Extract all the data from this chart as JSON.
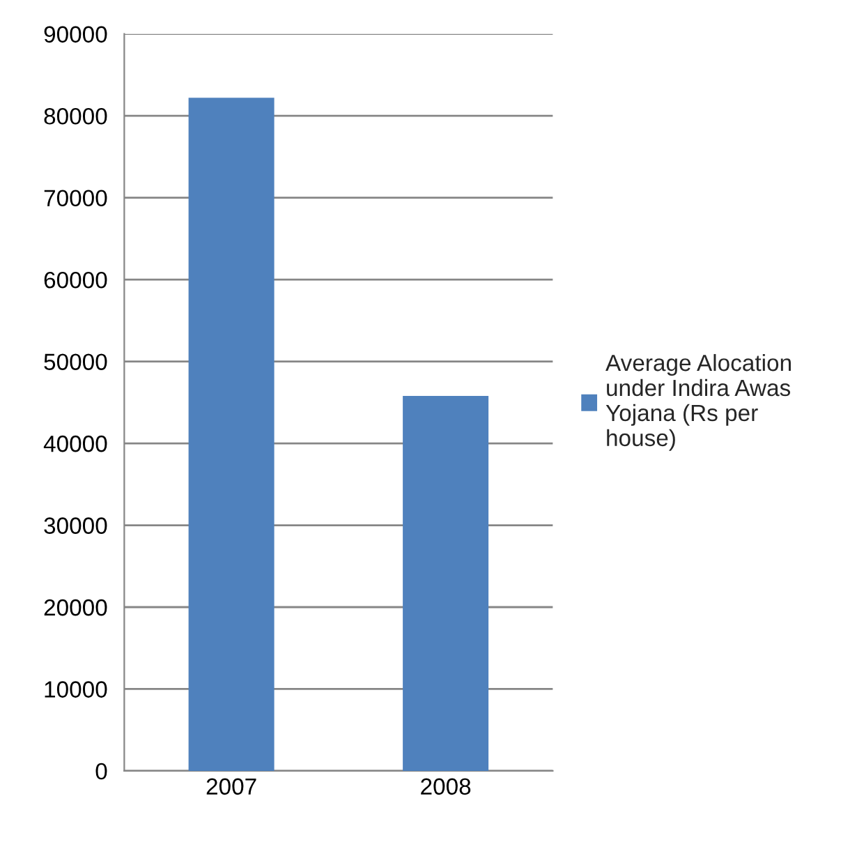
{
  "chart_data": {
    "type": "bar",
    "categories": [
      "2007",
      "2008"
    ],
    "series": [
      {
        "name": "Average Alocation under Indira Awas Yojana (Rs per house)",
        "color": "#4f81bd",
        "values": [
          82200,
          45800
        ]
      }
    ],
    "ylim": [
      0,
      90000
    ],
    "yticks": [
      0,
      10000,
      20000,
      30000,
      40000,
      50000,
      60000,
      70000,
      80000,
      90000
    ],
    "grid": "y",
    "legend": "right"
  }
}
